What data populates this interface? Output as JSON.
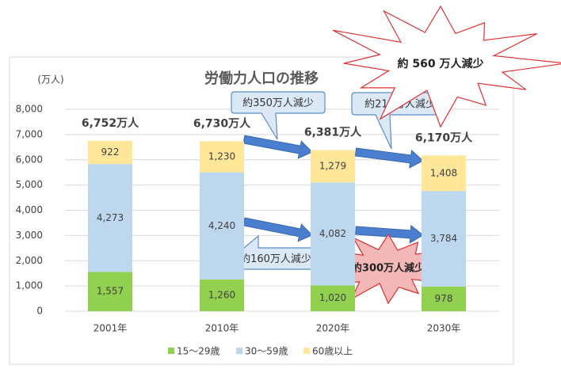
{
  "chart_data": {
    "type": "stacked_bar",
    "title": "労働力人口の推移",
    "y_unit": "(万人)",
    "categories": [
      "2001年",
      "2010年",
      "2020年",
      "2030年"
    ],
    "series": [
      {
        "name": "15～29歳",
        "color": "#92d050",
        "values": [
          1557,
          1260,
          1020,
          978
        ],
        "value_labels": [
          "1,557",
          "1,260",
          "1,020",
          "978"
        ]
      },
      {
        "name": "30～59歳",
        "color": "#bdd7ee",
        "values": [
          4273,
          4240,
          4082,
          3784
        ],
        "value_labels": [
          "4,273",
          "4,240",
          "4,082",
          "3,784"
        ]
      },
      {
        "name": "60歳以上",
        "color": "#ffe699",
        "values": [
          922,
          1230,
          1279,
          1408
        ],
        "value_labels": [
          "922",
          "1,230",
          "1,279",
          "1,408"
        ]
      }
    ],
    "totals": [
      6752,
      6730,
      6381,
      6170
    ],
    "total_labels": [
      "6,752万人",
      "6,730万人",
      "6,381万人",
      "6,170万人"
    ],
    "ylim": [
      0,
      8000
    ],
    "yticks": [
      0,
      {
        "value": 1000,
        "label": "1,000"
      },
      {
        "value": 2000,
        "label": "2,000"
      },
      {
        "value": 3000,
        "label": "3,000"
      },
      {
        "value": 4000,
        "label": "4,000"
      },
      {
        "value": 5000,
        "label": "5,000"
      },
      {
        "value": 6000,
        "label": "6,000"
      },
      {
        "value": 7000,
        "label": "7,000"
      },
      {
        "value": 8000,
        "label": "8,000"
      }
    ],
    "grid": true,
    "legend": "bottom",
    "annotations": {
      "top_2010_2020": "約350万人減少",
      "top_2020_2030": "約210万人減少",
      "mid_2010_2020": "約160万人減少",
      "mid_2020_2030": "約300万人減少",
      "overall": "約 560 万人減少"
    }
  }
}
